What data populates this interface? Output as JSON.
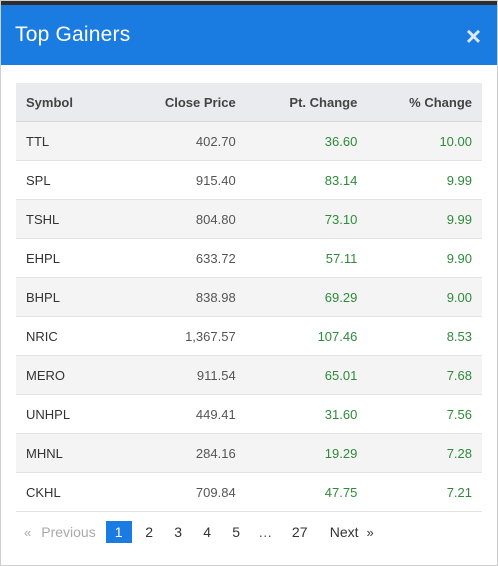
{
  "dialog": {
    "title": "Top Gainers",
    "close_label": "×"
  },
  "table": {
    "headers": {
      "symbol": "Symbol",
      "close_price": "Close Price",
      "pt_change": "Pt. Change",
      "pct_change": "% Change"
    },
    "rows": [
      {
        "symbol": "TTL",
        "close": "402.70",
        "pt": "36.60",
        "pct": "10.00"
      },
      {
        "symbol": "SPL",
        "close": "915.40",
        "pt": "83.14",
        "pct": "9.99"
      },
      {
        "symbol": "TSHL",
        "close": "804.80",
        "pt": "73.10",
        "pct": "9.99"
      },
      {
        "symbol": "EHPL",
        "close": "633.72",
        "pt": "57.11",
        "pct": "9.90"
      },
      {
        "symbol": "BHPL",
        "close": "838.98",
        "pt": "69.29",
        "pct": "9.00"
      },
      {
        "symbol": "NRIC",
        "close": "1,367.57",
        "pt": "107.46",
        "pct": "8.53"
      },
      {
        "symbol": "MERO",
        "close": "911.54",
        "pt": "65.01",
        "pct": "7.68"
      },
      {
        "symbol": "UNHPL",
        "close": "449.41",
        "pt": "31.60",
        "pct": "7.56"
      },
      {
        "symbol": "MHNL",
        "close": "284.16",
        "pt": "19.29",
        "pct": "7.28"
      },
      {
        "symbol": "CKHL",
        "close": "709.84",
        "pt": "47.75",
        "pct": "7.21"
      }
    ]
  },
  "pagination": {
    "prev_chevron": "«",
    "prev_label": "Previous",
    "pages": [
      "1",
      "2",
      "3",
      "4",
      "5"
    ],
    "active_page": "1",
    "ellipsis": "…",
    "last_page": "27",
    "next_label": "Next",
    "next_chevron": "»"
  },
  "colors": {
    "header_bg": "#1a7be0",
    "positive": "#2e8b3a",
    "active_page_bg": "#1a7be0"
  }
}
